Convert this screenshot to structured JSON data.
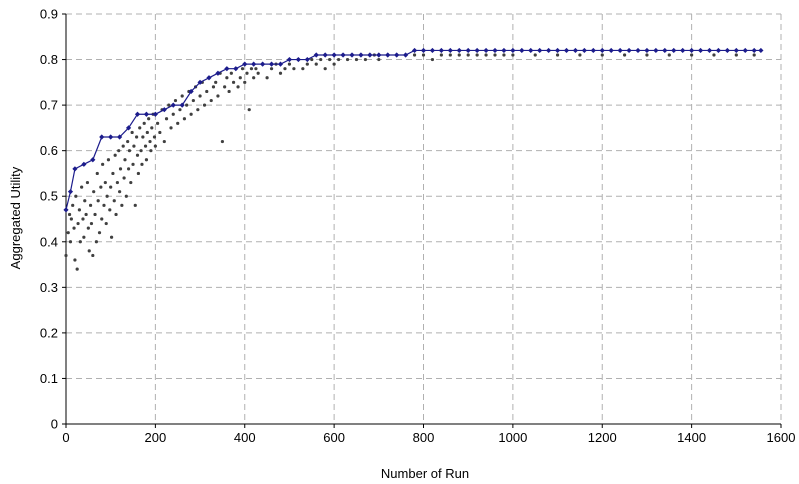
{
  "chart_data": {
    "type": "scatter",
    "xlabel": "Number of Run",
    "ylabel": "Aggregated Utility",
    "xlim": [
      0,
      1600
    ],
    "ylim": [
      0,
      0.9
    ],
    "xticks": [
      "0",
      "200",
      "400",
      "600",
      "800",
      "1000",
      "1200",
      "1400",
      "1600"
    ],
    "yticks": [
      "0",
      "0.1",
      "0.2",
      "0.3",
      "0.4",
      "0.5",
      "0.6",
      "0.7",
      "0.8",
      "0.9"
    ],
    "grid": true,
    "legend": "none",
    "series": [
      {
        "kind": "scatter",
        "color": "#404040",
        "description": "run samples",
        "points": [
          [
            0,
            0.37
          ],
          [
            5,
            0.42
          ],
          [
            8,
            0.46
          ],
          [
            10,
            0.4
          ],
          [
            12,
            0.45
          ],
          [
            15,
            0.48
          ],
          [
            18,
            0.43
          ],
          [
            20,
            0.36
          ],
          [
            22,
            0.5
          ],
          [
            25,
            0.34
          ],
          [
            27,
            0.44
          ],
          [
            30,
            0.47
          ],
          [
            32,
            0.4
          ],
          [
            35,
            0.52
          ],
          [
            38,
            0.45
          ],
          [
            40,
            0.41
          ],
          [
            42,
            0.49
          ],
          [
            45,
            0.46
          ],
          [
            48,
            0.53
          ],
          [
            50,
            0.43
          ],
          [
            52,
            0.38
          ],
          [
            55,
            0.48
          ],
          [
            57,
            0.44
          ],
          [
            60,
            0.37
          ],
          [
            62,
            0.51
          ],
          [
            65,
            0.46
          ],
          [
            68,
            0.4
          ],
          [
            70,
            0.55
          ],
          [
            72,
            0.49
          ],
          [
            75,
            0.42
          ],
          [
            78,
            0.52
          ],
          [
            80,
            0.45
          ],
          [
            82,
            0.57
          ],
          [
            85,
            0.48
          ],
          [
            88,
            0.53
          ],
          [
            90,
            0.44
          ],
          [
            92,
            0.5
          ],
          [
            95,
            0.58
          ],
          [
            98,
            0.47
          ],
          [
            100,
            0.52
          ],
          [
            102,
            0.41
          ],
          [
            105,
            0.55
          ],
          [
            108,
            0.49
          ],
          [
            110,
            0.59
          ],
          [
            112,
            0.46
          ],
          [
            115,
            0.53
          ],
          [
            118,
            0.6
          ],
          [
            120,
            0.51
          ],
          [
            122,
            0.56
          ],
          [
            125,
            0.48
          ],
          [
            128,
            0.61
          ],
          [
            130,
            0.54
          ],
          [
            132,
            0.58
          ],
          [
            135,
            0.5
          ],
          [
            138,
            0.62
          ],
          [
            140,
            0.56
          ],
          [
            142,
            0.6
          ],
          [
            145,
            0.53
          ],
          [
            148,
            0.64
          ],
          [
            150,
            0.57
          ],
          [
            152,
            0.61
          ],
          [
            155,
            0.48
          ],
          [
            158,
            0.63
          ],
          [
            160,
            0.59
          ],
          [
            162,
            0.55
          ],
          [
            165,
            0.65
          ],
          [
            168,
            0.6
          ],
          [
            170,
            0.57
          ],
          [
            172,
            0.63
          ],
          [
            175,
            0.66
          ],
          [
            178,
            0.61
          ],
          [
            180,
            0.58
          ],
          [
            182,
            0.64
          ],
          [
            185,
            0.67
          ],
          [
            188,
            0.62
          ],
          [
            190,
            0.6
          ],
          [
            192,
            0.65
          ],
          [
            195,
            0.68
          ],
          [
            198,
            0.63
          ],
          [
            200,
            0.61
          ],
          [
            205,
            0.66
          ],
          [
            210,
            0.64
          ],
          [
            215,
            0.69
          ],
          [
            220,
            0.62
          ],
          [
            225,
            0.67
          ],
          [
            230,
            0.7
          ],
          [
            235,
            0.65
          ],
          [
            240,
            0.68
          ],
          [
            245,
            0.71
          ],
          [
            250,
            0.66
          ],
          [
            255,
            0.69
          ],
          [
            260,
            0.72
          ],
          [
            265,
            0.67
          ],
          [
            270,
            0.7
          ],
          [
            275,
            0.73
          ],
          [
            280,
            0.68
          ],
          [
            285,
            0.71
          ],
          [
            290,
            0.74
          ],
          [
            295,
            0.69
          ],
          [
            300,
            0.72
          ],
          [
            305,
            0.75
          ],
          [
            310,
            0.7
          ],
          [
            315,
            0.73
          ],
          [
            320,
            0.76
          ],
          [
            325,
            0.71
          ],
          [
            330,
            0.74
          ],
          [
            335,
            0.75
          ],
          [
            340,
            0.72
          ],
          [
            345,
            0.77
          ],
          [
            350,
            0.62
          ],
          [
            355,
            0.74
          ],
          [
            360,
            0.76
          ],
          [
            365,
            0.73
          ],
          [
            370,
            0.77
          ],
          [
            375,
            0.75
          ],
          [
            380,
            0.78
          ],
          [
            385,
            0.74
          ],
          [
            390,
            0.76
          ],
          [
            395,
            0.78
          ],
          [
            400,
            0.75
          ],
          [
            405,
            0.77
          ],
          [
            410,
            0.69
          ],
          [
            415,
            0.78
          ],
          [
            420,
            0.76
          ],
          [
            425,
            0.78
          ],
          [
            430,
            0.77
          ],
          [
            440,
            0.79
          ],
          [
            450,
            0.76
          ],
          [
            460,
            0.78
          ],
          [
            470,
            0.79
          ],
          [
            480,
            0.77
          ],
          [
            490,
            0.78
          ],
          [
            500,
            0.79
          ],
          [
            510,
            0.78
          ],
          [
            520,
            0.8
          ],
          [
            530,
            0.78
          ],
          [
            540,
            0.79
          ],
          [
            550,
            0.8
          ],
          [
            560,
            0.79
          ],
          [
            570,
            0.8
          ],
          [
            580,
            0.78
          ],
          [
            590,
            0.8
          ],
          [
            600,
            0.79
          ],
          [
            610,
            0.8
          ],
          [
            620,
            0.81
          ],
          [
            630,
            0.8
          ],
          [
            640,
            0.81
          ],
          [
            650,
            0.8
          ],
          [
            660,
            0.81
          ],
          [
            670,
            0.8
          ],
          [
            680,
            0.81
          ],
          [
            690,
            0.81
          ],
          [
            700,
            0.8
          ],
          [
            720,
            0.81
          ],
          [
            740,
            0.81
          ],
          [
            760,
            0.81
          ],
          [
            780,
            0.81
          ],
          [
            800,
            0.81
          ],
          [
            820,
            0.8
          ],
          [
            840,
            0.81
          ],
          [
            860,
            0.81
          ],
          [
            880,
            0.81
          ],
          [
            900,
            0.81
          ],
          [
            920,
            0.81
          ],
          [
            940,
            0.81
          ],
          [
            960,
            0.81
          ],
          [
            980,
            0.81
          ],
          [
            1000,
            0.81
          ],
          [
            1050,
            0.81
          ],
          [
            1100,
            0.81
          ],
          [
            1150,
            0.81
          ],
          [
            1200,
            0.81
          ],
          [
            1250,
            0.81
          ],
          [
            1300,
            0.81
          ],
          [
            1350,
            0.81
          ],
          [
            1400,
            0.81
          ],
          [
            1450,
            0.81
          ],
          [
            1500,
            0.81
          ],
          [
            1540,
            0.81
          ]
        ]
      },
      {
        "kind": "line",
        "color": "#1c1c8c",
        "description": "best so far",
        "points": [
          [
            0,
            0.47
          ],
          [
            10,
            0.51
          ],
          [
            20,
            0.56
          ],
          [
            40,
            0.57
          ],
          [
            60,
            0.58
          ],
          [
            80,
            0.63
          ],
          [
            100,
            0.63
          ],
          [
            120,
            0.63
          ],
          [
            140,
            0.65
          ],
          [
            160,
            0.68
          ],
          [
            180,
            0.68
          ],
          [
            200,
            0.68
          ],
          [
            220,
            0.69
          ],
          [
            240,
            0.7
          ],
          [
            260,
            0.7
          ],
          [
            280,
            0.73
          ],
          [
            300,
            0.75
          ],
          [
            320,
            0.76
          ],
          [
            340,
            0.77
          ],
          [
            360,
            0.78
          ],
          [
            380,
            0.78
          ],
          [
            400,
            0.79
          ],
          [
            420,
            0.79
          ],
          [
            440,
            0.79
          ],
          [
            460,
            0.79
          ],
          [
            480,
            0.79
          ],
          [
            500,
            0.8
          ],
          [
            520,
            0.8
          ],
          [
            540,
            0.8
          ],
          [
            560,
            0.81
          ],
          [
            580,
            0.81
          ],
          [
            600,
            0.81
          ],
          [
            620,
            0.81
          ],
          [
            640,
            0.81
          ],
          [
            660,
            0.81
          ],
          [
            680,
            0.81
          ],
          [
            700,
            0.81
          ],
          [
            720,
            0.81
          ],
          [
            740,
            0.81
          ],
          [
            760,
            0.81
          ],
          [
            780,
            0.82
          ],
          [
            800,
            0.82
          ],
          [
            820,
            0.82
          ],
          [
            840,
            0.82
          ],
          [
            860,
            0.82
          ],
          [
            880,
            0.82
          ],
          [
            900,
            0.82
          ],
          [
            920,
            0.82
          ],
          [
            940,
            0.82
          ],
          [
            960,
            0.82
          ],
          [
            980,
            0.82
          ],
          [
            1000,
            0.82
          ],
          [
            1020,
            0.82
          ],
          [
            1040,
            0.82
          ],
          [
            1060,
            0.82
          ],
          [
            1080,
            0.82
          ],
          [
            1100,
            0.82
          ],
          [
            1120,
            0.82
          ],
          [
            1140,
            0.82
          ],
          [
            1160,
            0.82
          ],
          [
            1180,
            0.82
          ],
          [
            1200,
            0.82
          ],
          [
            1220,
            0.82
          ],
          [
            1240,
            0.82
          ],
          [
            1260,
            0.82
          ],
          [
            1280,
            0.82
          ],
          [
            1300,
            0.82
          ],
          [
            1320,
            0.82
          ],
          [
            1340,
            0.82
          ],
          [
            1360,
            0.82
          ],
          [
            1380,
            0.82
          ],
          [
            1400,
            0.82
          ],
          [
            1420,
            0.82
          ],
          [
            1440,
            0.82
          ],
          [
            1460,
            0.82
          ],
          [
            1480,
            0.82
          ],
          [
            1500,
            0.82
          ],
          [
            1520,
            0.82
          ],
          [
            1540,
            0.82
          ],
          [
            1555,
            0.82
          ]
        ]
      }
    ]
  }
}
